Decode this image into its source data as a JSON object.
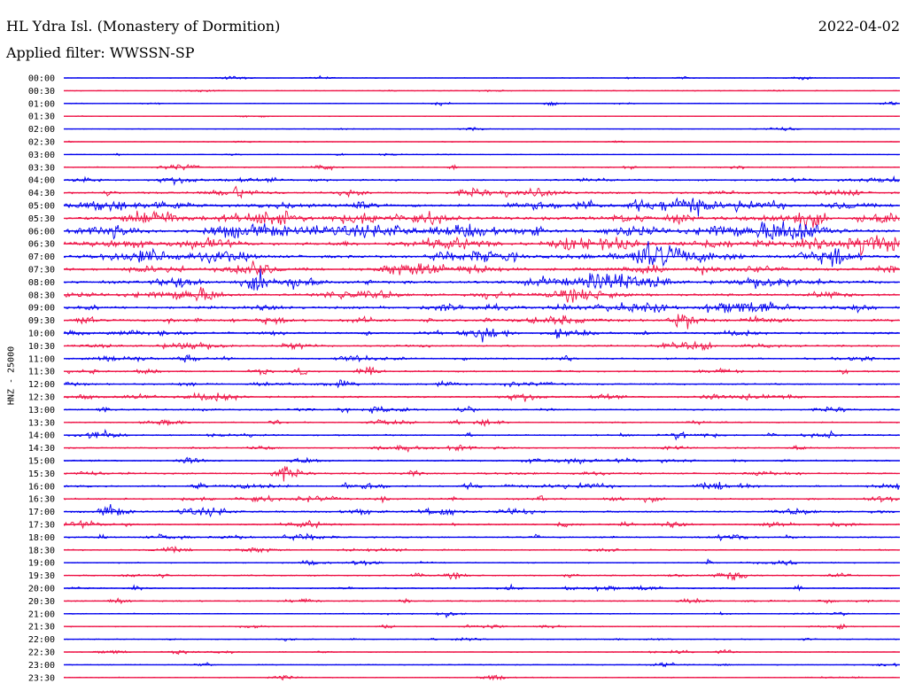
{
  "header": {
    "station": "HL Ydra Isl. (Monastery of Dormition)",
    "filter": "Applied filter: WWSSN-SP",
    "date": "2022-04-02",
    "channel_label": "HNZ - 25000"
  },
  "chart_data": {
    "type": "line",
    "title": "HL Ydra Isl. (Monastery of Dormition)",
    "subtitle": "Applied filter: WWSSN-SP",
    "ylabel": "HNZ - 25000",
    "rows": [
      "00:00",
      "00:30",
      "01:00",
      "01:30",
      "02:00",
      "02:30",
      "03:00",
      "03:30",
      "04:00",
      "04:30",
      "05:00",
      "05:30",
      "06:00",
      "06:30",
      "07:00",
      "07:30",
      "08:00",
      "08:30",
      "09:00",
      "09:30",
      "10:00",
      "10:30",
      "11:00",
      "11:30",
      "12:00",
      "12:30",
      "13:00",
      "13:30",
      "14:00",
      "14:30",
      "15:00",
      "15:30",
      "16:00",
      "16:30",
      "17:00",
      "17:30",
      "18:00",
      "18:30",
      "19:00",
      "19:30",
      "20:00",
      "20:30",
      "21:00",
      "21:30",
      "22:00",
      "22:30",
      "23:00",
      "23:30"
    ],
    "colors": [
      "#0000ee",
      "#ee1144"
    ],
    "activity_level": [
      0.05,
      0.08,
      0.04,
      0.03,
      0.05,
      0.06,
      0.1,
      0.25,
      0.45,
      0.6,
      0.85,
      1.0,
      1.0,
      1.0,
      0.95,
      0.8,
      0.9,
      0.75,
      0.8,
      0.7,
      0.55,
      0.5,
      0.45,
      0.45,
      0.4,
      0.45,
      0.35,
      0.3,
      0.4,
      0.3,
      0.35,
      0.4,
      0.5,
      0.45,
      0.5,
      0.4,
      0.35,
      0.3,
      0.25,
      0.3,
      0.25,
      0.3,
      0.2,
      0.2,
      0.15,
      0.15,
      0.15,
      0.15
    ]
  }
}
